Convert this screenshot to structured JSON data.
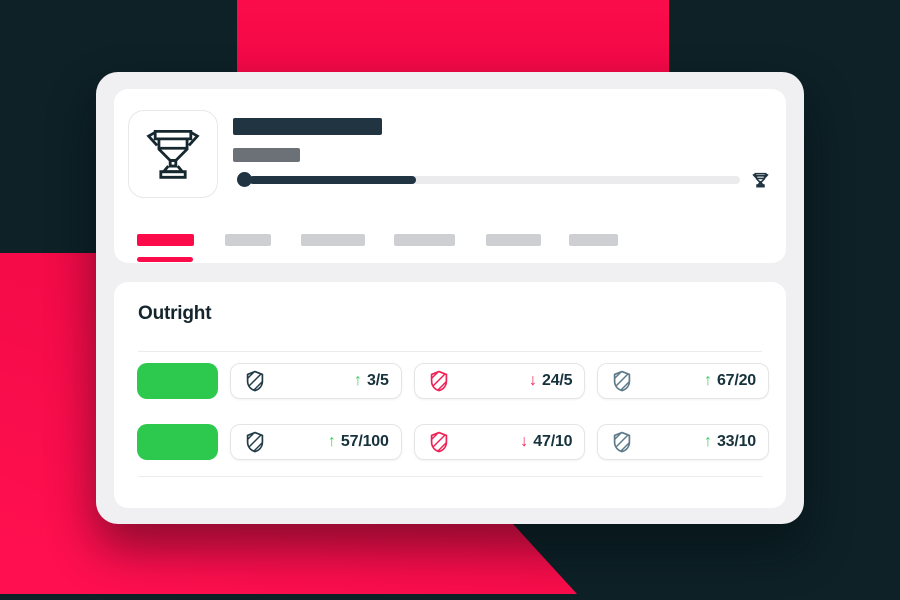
{
  "colors": {
    "background_navy": "#0d2127",
    "brand_red": "#fb0b4a",
    "card_gray": "#f0f0f2",
    "panel_white": "#ffffff",
    "skeleton_dark": "#203442",
    "skeleton_gray": "#6b7176",
    "skeleton_light": "#cdcfd2",
    "team_green": "#2dc84e",
    "trend_up_green": "#3bce5e",
    "trend_down_red": "#ef2156",
    "shield_dark": "#223b47",
    "shield_red": "#ef2156",
    "shield_slate": "#5d7b8a",
    "text_navy": "#16323c"
  },
  "icons": {
    "competition": "trophy-icon (line art)",
    "progress_marker": "filled-dot",
    "progress_end": "small-trophy-icon",
    "selection_badge": "hatched-shield-icon",
    "up_glyph": "↑",
    "down_glyph": "↓"
  },
  "header": {
    "title_bar": "skeleton-placeholder",
    "subtitle_bar": "skeleton-placeholder",
    "progress_pct": 34
  },
  "tabs": [
    {
      "state": "active",
      "label": ""
    },
    {
      "state": "placeholder",
      "label": ""
    },
    {
      "state": "placeholder",
      "label": ""
    },
    {
      "state": "placeholder",
      "label": ""
    },
    {
      "state": "placeholder",
      "label": ""
    },
    {
      "state": "placeholder",
      "label": ""
    }
  ],
  "section": {
    "title": "Outright",
    "rows": [
      {
        "team": "green-placeholder",
        "selections": [
          {
            "shield": "dark",
            "trend": "up",
            "arrow": "↑",
            "odds": "3/5"
          },
          {
            "shield": "red",
            "trend": "down",
            "arrow": "↓",
            "odds": "24/5"
          },
          {
            "shield": "slate",
            "trend": "up",
            "arrow": "↑",
            "odds": "67/20"
          }
        ]
      },
      {
        "team": "green-placeholder",
        "selections": [
          {
            "shield": "dark",
            "trend": "up",
            "arrow": "↑",
            "odds": "57/100"
          },
          {
            "shield": "red",
            "trend": "down",
            "arrow": "↓",
            "odds": "47/10"
          },
          {
            "shield": "slate",
            "trend": "up",
            "arrow": "↑",
            "odds": "33/10"
          }
        ]
      }
    ]
  }
}
